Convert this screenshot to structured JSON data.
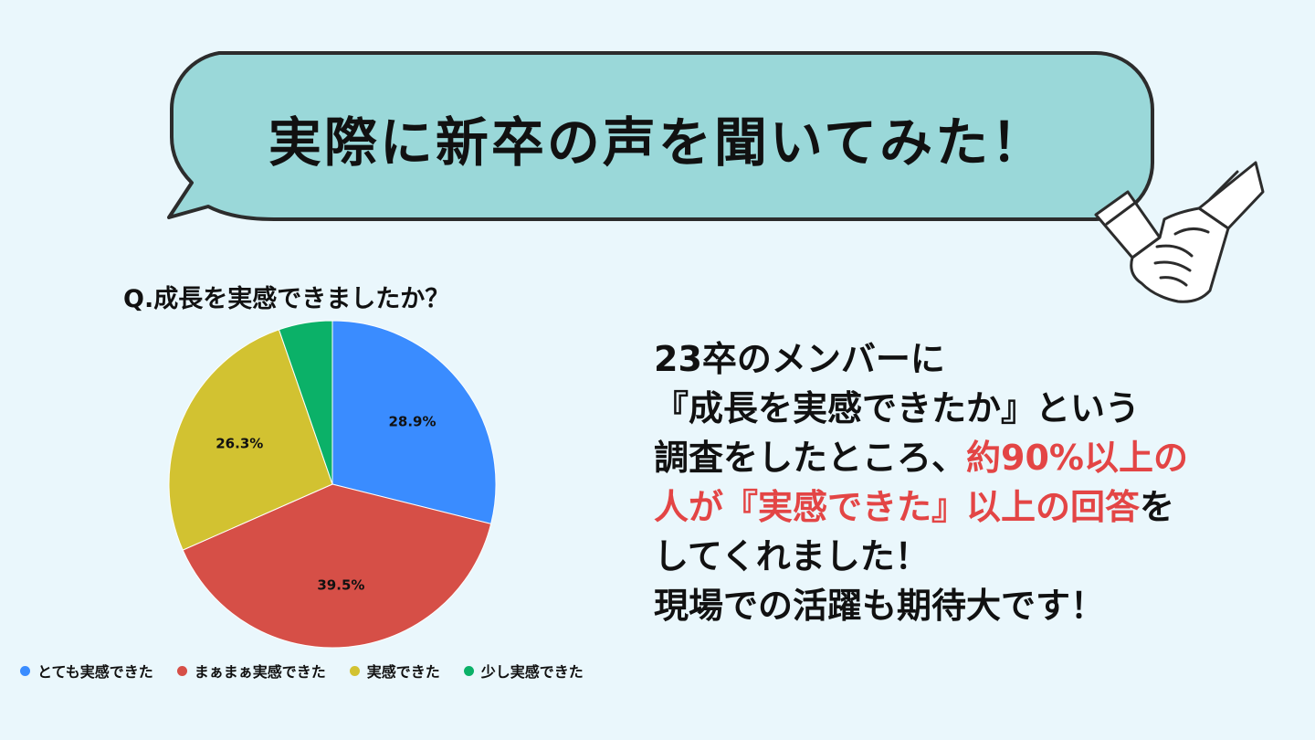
{
  "banner": {
    "title": "実際に新卒の声を聞いてみた！"
  },
  "chart_data": {
    "type": "pie",
    "title": "Q.成長を実感できましたか？",
    "slices": [
      {
        "label": "とても実感できた",
        "value": 28.9,
        "display": "28.9%",
        "color": "#3a8cff"
      },
      {
        "label": "まぁまぁ実感できた",
        "value": 39.5,
        "display": "39.5%",
        "color": "#d64f47"
      },
      {
        "label": "実感できた",
        "value": 26.3,
        "display": "26.3%",
        "color": "#d2c231"
      },
      {
        "label": "少し実感できた",
        "value": 5.3,
        "display": "",
        "color": "#0bb168"
      }
    ],
    "legend_position": "bottom"
  },
  "message": {
    "lines": [
      [
        {
          "text": "23卒のメンバーに",
          "hl": false
        }
      ],
      [
        {
          "text": "『成長を実感できたか』という",
          "hl": false
        }
      ],
      [
        {
          "text": "調査をしたところ、",
          "hl": false
        },
        {
          "text": "約90%以上の",
          "hl": true
        }
      ],
      [
        {
          "text": "人が『実感できた』以上の回答",
          "hl": true
        },
        {
          "text": "を",
          "hl": false
        }
      ],
      [
        {
          "text": "してくれました！",
          "hl": false
        }
      ],
      [
        {
          "text": "現場での活躍も期待大です！",
          "hl": false
        }
      ]
    ]
  },
  "colors": {
    "background": "#eaf7fc",
    "bubble_fill": "#9ad8d9",
    "highlight": "#e34545"
  },
  "icons": [
    "speech-bubble",
    "handshake-icon"
  ]
}
